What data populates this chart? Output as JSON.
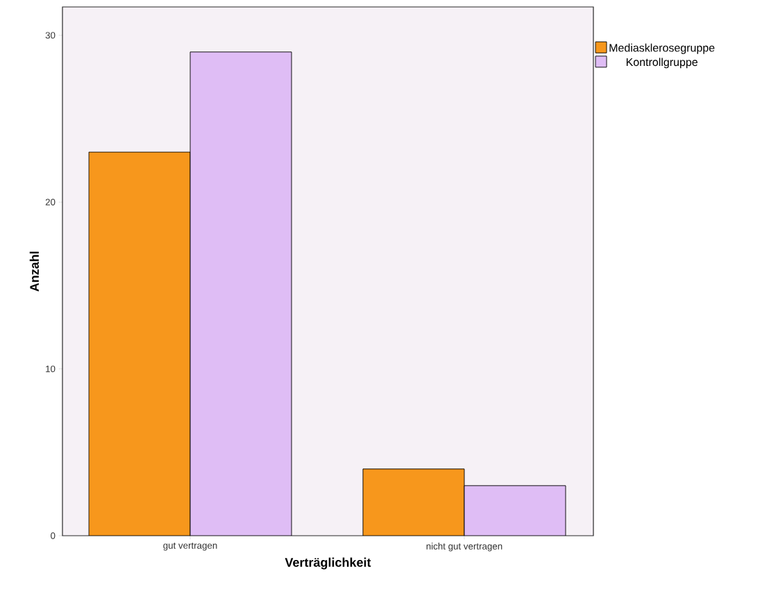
{
  "chart_data": {
    "type": "bar",
    "xlabel": "Verträglichkeit",
    "ylabel": "Anzahl",
    "categories": [
      "gut vertragen",
      "nicht gut vertragen"
    ],
    "series": [
      {
        "name": "Mediasklerosegruppe",
        "color": "#f7971c",
        "values": [
          23,
          4
        ]
      },
      {
        "name": "Kontrollgruppe",
        "color": "#dfbdf5",
        "values": [
          29,
          3
        ]
      }
    ],
    "ylim": [
      0,
      31.7
    ],
    "yticks": [
      0,
      10,
      20,
      30
    ],
    "grid": false,
    "legend": "top right"
  }
}
